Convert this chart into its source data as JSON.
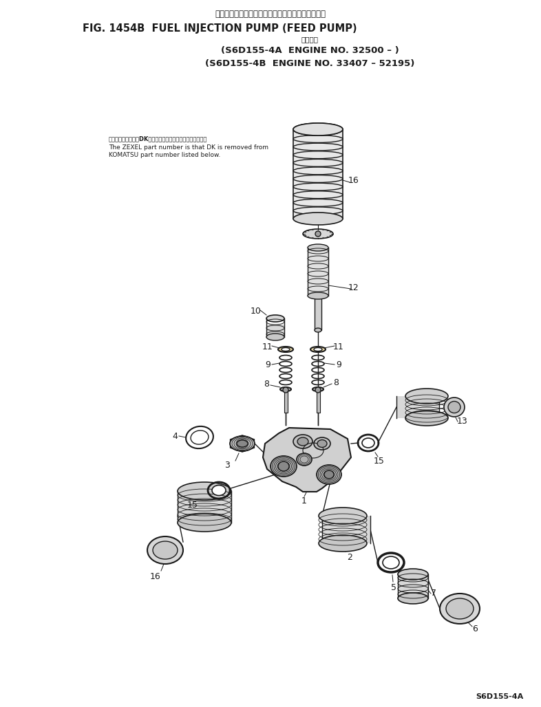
{
  "title_japanese": "フェルインジェクションポンプ　フィードポンプ・",
  "title_english": "FIG. 1454B  FUEL INJECTION PUMP (FEED PUMP)",
  "subtitle_japanese": "適用号機",
  "subtitle1": "(S6D155-4A  ENGINE NO. 32500 – )",
  "subtitle2": "(S6D155-4B  ENGINE NO. 33407 – 52195)",
  "note_japanese": "品番のメーカー番号DKを除いたものがゼクセルの品番です。",
  "note_english1": "The ZEXEL part number is that DK is removed from",
  "note_english2": "KOMATSU part number listed below.",
  "footer": "S6D155-4A",
  "bg_color": "#ffffff",
  "ink_color": "#1a1a1a"
}
